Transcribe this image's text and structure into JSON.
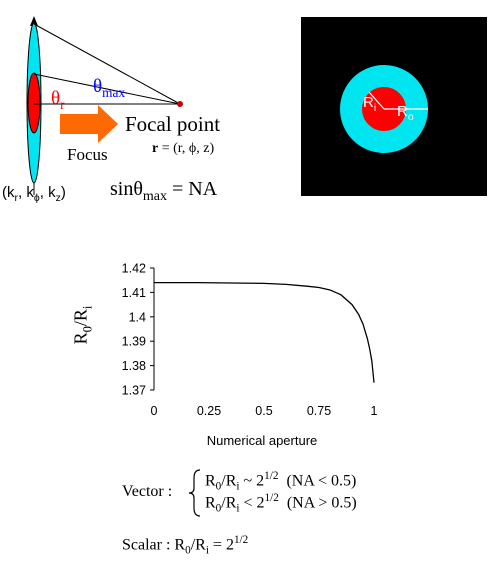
{
  "optics_diagram": {
    "theta_r": "θ",
    "theta_r_sub": "r",
    "theta_max": "θ",
    "theta_max_sub": "max",
    "focus_label": "Focus",
    "focal_point_label": "Focal point",
    "r_bold": "r",
    "r_coords": " = (r, ϕ, z)",
    "k_open": "(k",
    "k_r_sub": "r",
    "k_sep1": ", k",
    "k_phi_sub": "ϕ",
    "k_sep2": ", k",
    "k_z_sub": "z",
    "k_close": ")",
    "sin_part": "sinθ",
    "sin_sub": "max",
    "sin_rest": " = NA",
    "colors": {
      "outer_lens": "#00e5f0",
      "inner_lens": "#ff0000",
      "arrow": "#ff6a00",
      "theta_r": "#ff0000",
      "theta_max": "#0000ff"
    }
  },
  "ring_figure": {
    "ri_label": "R",
    "ri_sub": "i",
    "ro_label": "R",
    "ro_sub": "o",
    "colors": {
      "background": "#000000",
      "ring": "#00e5f0",
      "core": "#ff0000"
    }
  },
  "chart_data": {
    "type": "line",
    "xlabel": "Numerical aperture",
    "ylabel_main": "R",
    "ylabel_sub0": "0",
    "ylabel_slash": "/R",
    "ylabel_sub1": "i",
    "xlim": [
      0,
      1
    ],
    "ylim": [
      1.37,
      1.42
    ],
    "xticks": [
      0,
      0.25,
      0.5,
      0.75,
      1
    ],
    "xtick_labels": [
      "0",
      "0.25",
      "0.5",
      "0.75",
      "1"
    ],
    "yticks": [
      1.37,
      1.38,
      1.39,
      1.4,
      1.41,
      1.42
    ],
    "ytick_labels": [
      "1.37",
      "1.38",
      "1.39",
      "1.4",
      "1.41",
      "1.42"
    ],
    "grid": false,
    "series": [
      {
        "x": [
          0,
          0.1,
          0.2,
          0.3,
          0.4,
          0.5,
          0.6,
          0.7,
          0.75,
          0.8,
          0.85,
          0.9,
          0.93,
          0.95,
          0.97,
          0.98,
          0.99,
          1.0
        ],
        "y": [
          1.414,
          1.414,
          1.414,
          1.4139,
          1.4138,
          1.4137,
          1.4133,
          1.4125,
          1.412,
          1.411,
          1.409,
          1.405,
          1.401,
          1.397,
          1.391,
          1.387,
          1.382,
          1.373
        ]
      }
    ]
  },
  "equations": {
    "vector_label": "Vector :",
    "line1_r": "R",
    "line1_sub0": "0",
    "line1_mid": "/R",
    "line1_subi": "i",
    "line1_rel": " ~ 2",
    "line1_sup": "1/2",
    "line1_cond": "  (NA < 0.5)",
    "line2_r": "R",
    "line2_sub0": "0",
    "line2_mid": "/R",
    "line2_subi": "i",
    "line2_rel": " < 2",
    "line2_sup": "1/2",
    "line2_cond": "  (NA > 0.5)",
    "scalar_label": "Scalar : R",
    "scalar_sub0": "0",
    "scalar_mid": "/R",
    "scalar_subi": "i",
    "scalar_rel": " = 2",
    "scalar_sup": "1/2"
  }
}
